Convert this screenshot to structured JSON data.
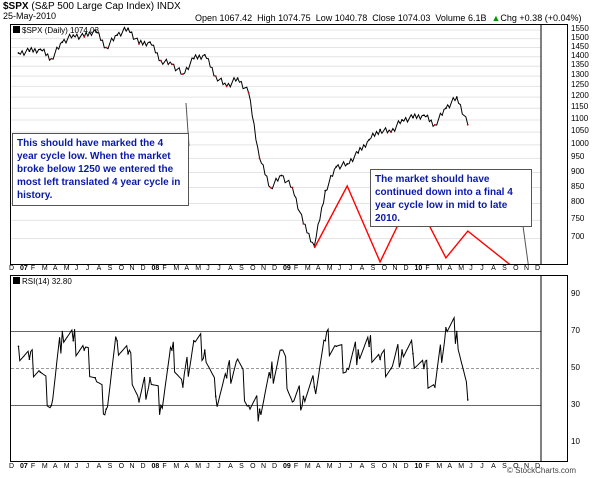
{
  "header": {
    "symbol": "$SPX",
    "name": "(S&P 500 Large Cap Index)",
    "exchange": "INDX",
    "date": "25-May-2010",
    "open_label": "Open",
    "open": "1067.42",
    "high_label": "High",
    "high": "1074.75",
    "low_label": "Low",
    "low": "1040.78",
    "close_label": "Close",
    "close": "1074.03",
    "volume_label": "Volume",
    "volume": "6.1B",
    "chg_label": "Chg",
    "chg": "+0.38 (+0.04%)",
    "chg_icon": "up-arrow-icon"
  },
  "legend": {
    "price": "$SPX (Daily) 1074.03",
    "rsi": "RSI(14) 32.80"
  },
  "annotations": {
    "left": "This should have marked the 4 year cycle low. When the market broke below 1250 we entered the most left translated 4 year cycle in history.",
    "right": "The market should have continued down into a final 4 year cycle low in mid to late 2010."
  },
  "watermark": "© StockCharts.com",
  "colors": {
    "annotation_text": "#0a1aa8",
    "cycle_line": "#ff0000",
    "price_down": "#cc0000",
    "price_up": "#000000"
  },
  "chart_data": [
    {
      "type": "line",
      "title": "$SPX (Daily) 1074.03",
      "x_ticks": [
        "D",
        "07",
        "F",
        "M",
        "A",
        "M",
        "J",
        "J",
        "A",
        "S",
        "O",
        "N",
        "D",
        "08",
        "F",
        "M",
        "A",
        "M",
        "J",
        "J",
        "A",
        "S",
        "O",
        "N",
        "D",
        "09",
        "F",
        "M",
        "A",
        "M",
        "J",
        "J",
        "A",
        "S",
        "O",
        "N",
        "D",
        "10",
        "F",
        "M",
        "A",
        "M",
        "J",
        "J",
        "A",
        "S",
        "O",
        "N",
        "D"
      ],
      "y_ticks": [
        700,
        750,
        800,
        850,
        900,
        950,
        1000,
        1050,
        1100,
        1150,
        1200,
        1250,
        1300,
        1350,
        1400,
        1450,
        1500,
        1550
      ],
      "ylim": [
        635,
        1580
      ],
      "y_scale": "log",
      "series": [
        {
          "x": [
            "2006-12",
            "2007-01",
            "2007-02",
            "2007-03",
            "2007-04",
            "2007-05",
            "2007-06",
            "2007-07",
            "2007-08",
            "2007-09",
            "2007-10",
            "2007-11",
            "2007-12",
            "2008-01",
            "2008-02",
            "2008-03",
            "2008-04",
            "2008-05",
            "2008-06",
            "2008-07",
            "2008-08",
            "2008-09",
            "2008-10",
            "2008-11",
            "2008-12",
            "2009-01",
            "2009-02",
            "2009-03",
            "2009-04",
            "2009-05",
            "2009-06",
            "2009-07",
            "2009-08",
            "2009-09",
            "2009-10",
            "2009-11",
            "2009-12",
            "2010-01",
            "2010-02",
            "2010-03",
            "2010-04",
            "2010-05"
          ],
          "values": [
            1420,
            1430,
            1440,
            1390,
            1480,
            1520,
            1510,
            1550,
            1450,
            1520,
            1560,
            1470,
            1480,
            1380,
            1360,
            1310,
            1390,
            1410,
            1300,
            1250,
            1290,
            1220,
            950,
            850,
            890,
            850,
            740,
            680,
            840,
            920,
            930,
            970,
            1020,
            1060,
            1050,
            1100,
            1110,
            1120,
            1080,
            1150,
            1200,
            1080
          ]
        },
        {
          "type": "line",
          "x": [
            "2009-03",
            "2009-06",
            "2009-09",
            "2009-12",
            "2010-03",
            "2010-05",
            "2010-11"
          ],
          "values": [
            675,
            855,
            640,
            830,
            650,
            720,
            590
          ]
        }
      ]
    },
    {
      "type": "line",
      "title": "RSI(14) 32.80",
      "x_ticks": [
        "D",
        "07",
        "F",
        "M",
        "A",
        "M",
        "J",
        "J",
        "A",
        "S",
        "O",
        "N",
        "D",
        "08",
        "F",
        "M",
        "A",
        "M",
        "J",
        "J",
        "A",
        "S",
        "O",
        "N",
        "D",
        "09",
        "F",
        "M",
        "A",
        "M",
        "J",
        "J",
        "A",
        "S",
        "O",
        "N",
        "D",
        "10",
        "F",
        "M",
        "A",
        "M",
        "J",
        "J",
        "A",
        "S",
        "O",
        "N",
        "D"
      ],
      "y_ticks": [
        10,
        30,
        50,
        70,
        90
      ],
      "ylim": [
        0,
        100
      ],
      "grid": [
        30,
        50,
        70
      ],
      "series": [
        {
          "x": [
            "2006-12",
            "2007-01",
            "2007-02",
            "2007-03",
            "2007-04",
            "2007-05",
            "2007-06",
            "2007-07",
            "2007-08",
            "2007-09",
            "2007-10",
            "2007-11",
            "2007-12",
            "2008-01",
            "2008-02",
            "2008-03",
            "2008-04",
            "2008-05",
            "2008-06",
            "2008-07",
            "2008-08",
            "2008-09",
            "2008-10",
            "2008-11",
            "2008-12",
            "2009-01",
            "2009-02",
            "2009-03",
            "2009-04",
            "2009-05",
            "2009-06",
            "2009-07",
            "2009-08",
            "2009-09",
            "2009-10",
            "2009-11",
            "2009-12",
            "2010-01",
            "2010-02",
            "2010-03",
            "2010-04",
            "2010-05"
          ],
          "values": [
            62,
            55,
            48,
            30,
            70,
            65,
            60,
            45,
            28,
            65,
            58,
            32,
            45,
            30,
            60,
            40,
            65,
            60,
            35,
            45,
            55,
            30,
            28,
            45,
            60,
            32,
            35,
            40,
            65,
            62,
            50,
            60,
            62,
            55,
            50,
            60,
            58,
            50,
            40,
            72,
            70,
            33
          ]
        }
      ]
    }
  ]
}
